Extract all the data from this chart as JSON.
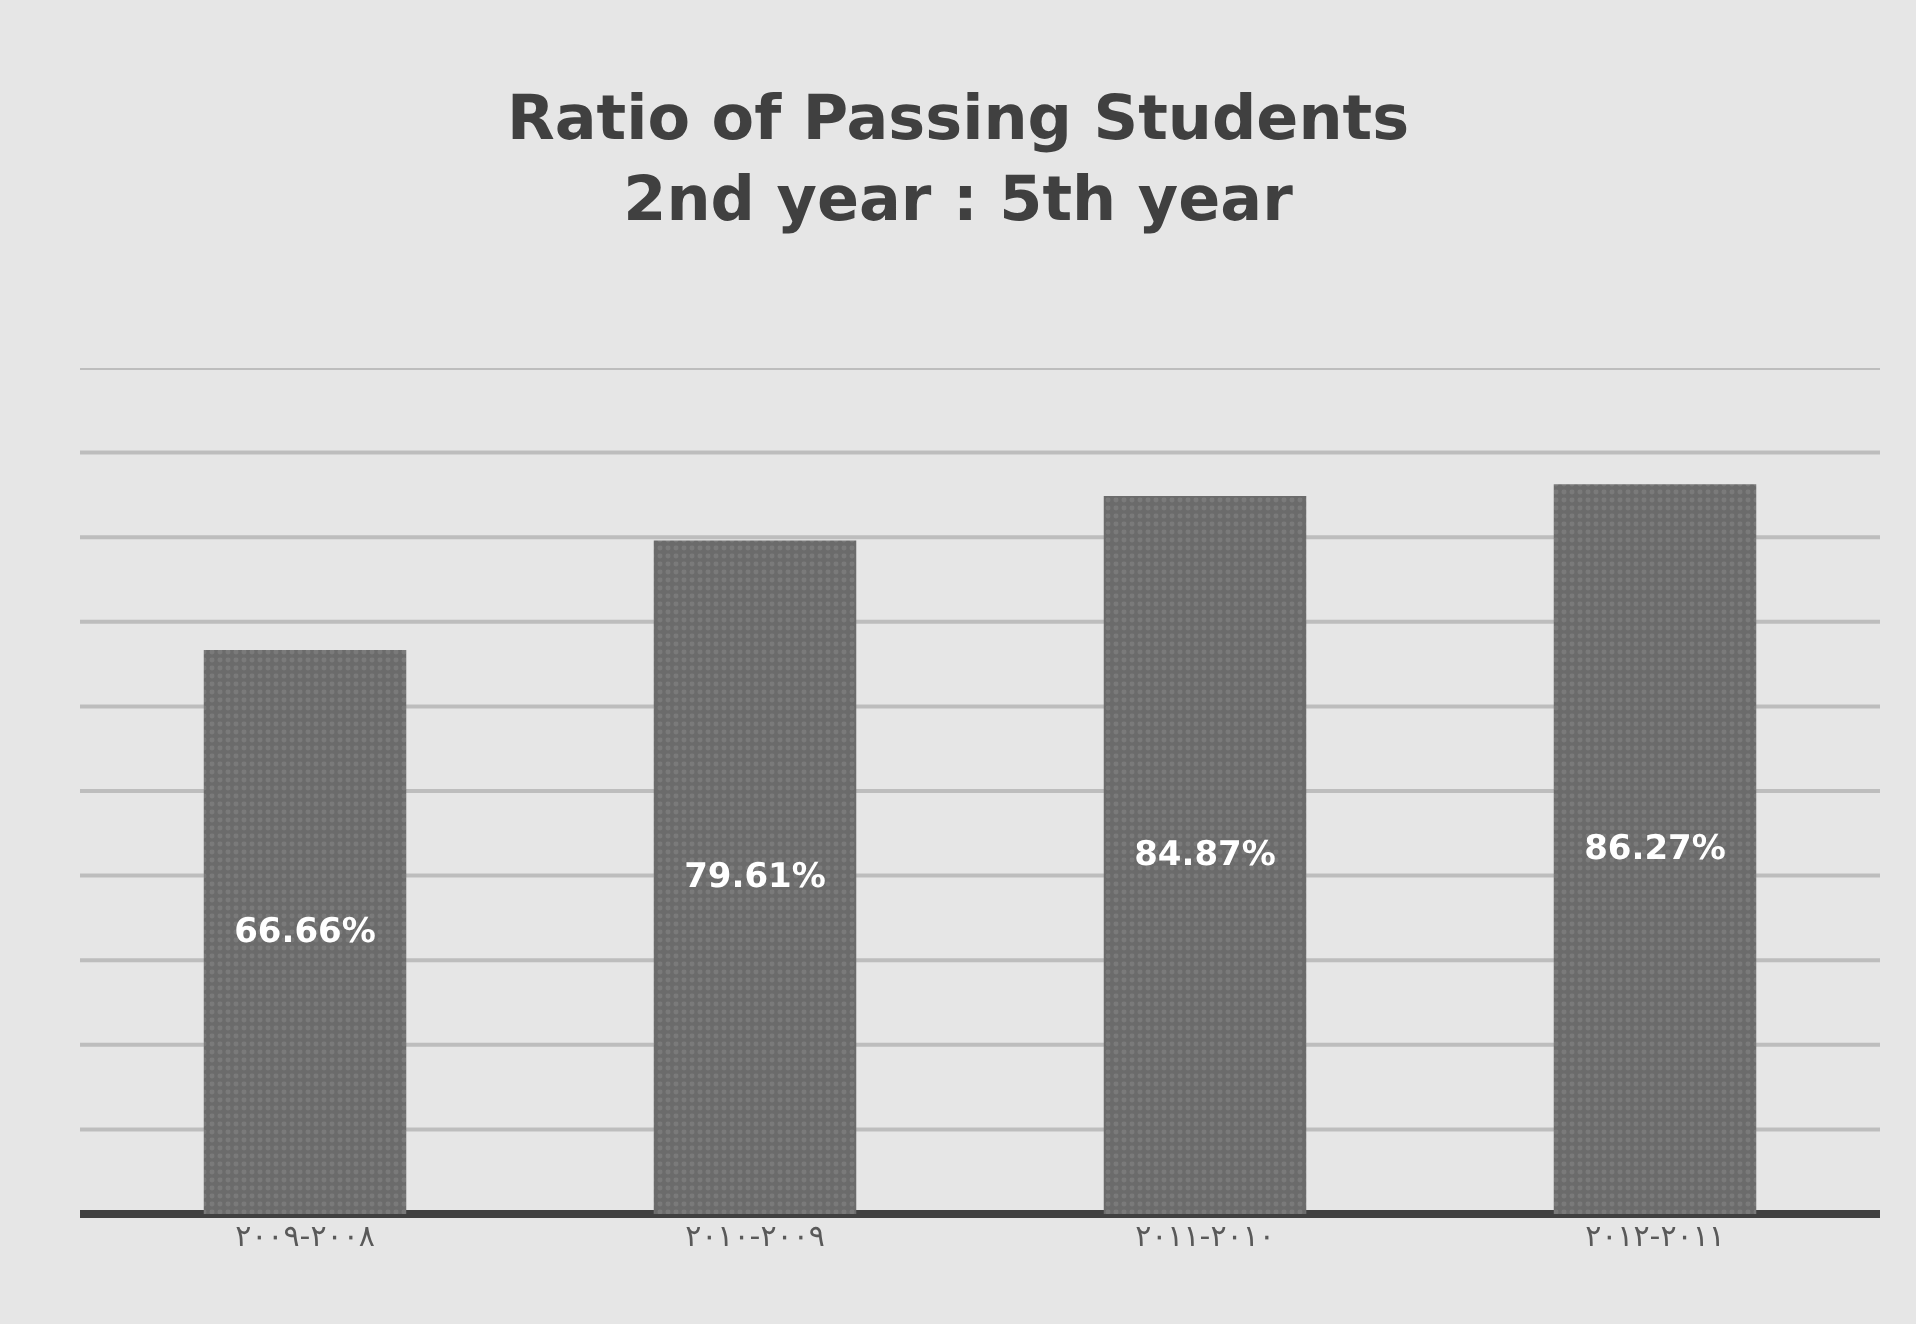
{
  "chart_data": {
    "type": "bar",
    "title": "Ratio of Passing Students\n2nd year : 5th year",
    "categories": [
      "٢٠٠٩-٢٠٠٨",
      "٢٠١٠-٢٠٠٩",
      "٢٠١١-٢٠١٠",
      "٢٠١٢-٢٠١١"
    ],
    "values": [
      66.66,
      79.61,
      84.87,
      86.27
    ],
    "value_labels": [
      "66.66%",
      "79.61%",
      "84.87%",
      "86.27%"
    ],
    "color": "#6b6b6b",
    "ylim": [
      0,
      100
    ],
    "yticks": [
      {
        "value": 0,
        "label": null
      },
      {
        "value": 10,
        "label": null
      },
      {
        "value": 20,
        "label": null
      },
      {
        "value": 30,
        "label": null
      },
      {
        "value": 40,
        "label": null
      },
      {
        "value": 50,
        "label": null
      },
      {
        "value": 60,
        "label": null
      },
      {
        "value": 70,
        "label": null
      },
      {
        "value": 80,
        "label": null
      },
      {
        "value": 90,
        "label": null
      },
      {
        "value": 100,
        "label": null
      }
    ],
    "grid": "y",
    "tick_labels": "x",
    "legend": false
  }
}
